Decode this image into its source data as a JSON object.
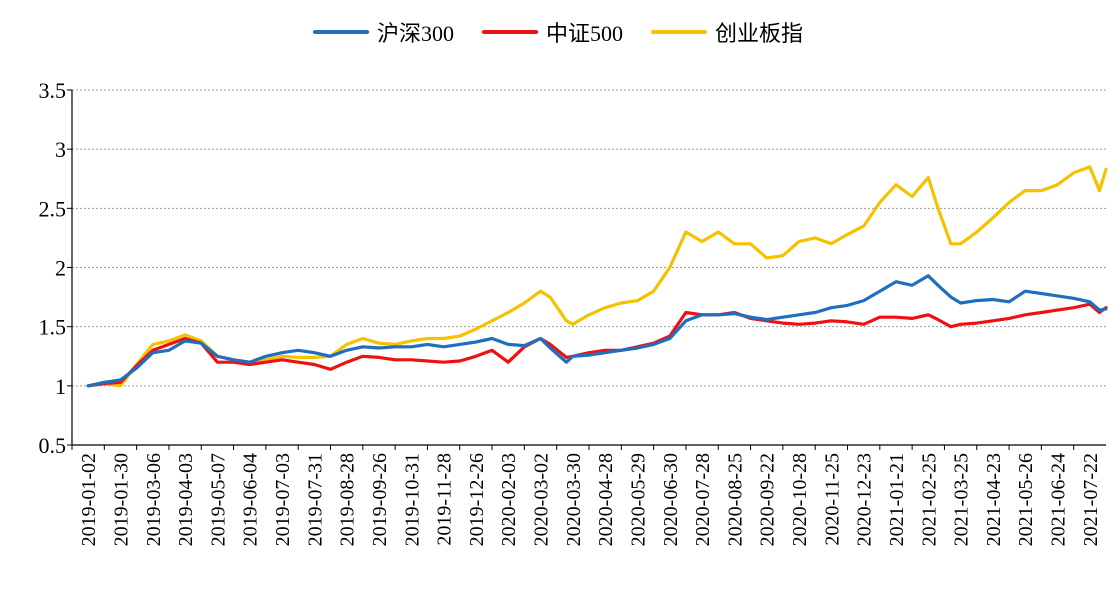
{
  "chart_data": {
    "type": "line",
    "title": "",
    "xlabel": "",
    "ylabel": "",
    "ylim": [
      0.5,
      3.5
    ],
    "yticks": [
      "3.5",
      "3",
      "2.5",
      "2",
      "1.5",
      "1",
      "0.5"
    ],
    "grid": "horizontal dotted",
    "legend_position": "top-center",
    "categories": [
      "2019-01-02",
      "2019-01-30",
      "2019-03-06",
      "2019-04-03",
      "2019-05-07",
      "2019-06-04",
      "2019-07-03",
      "2019-07-31",
      "2019-08-28",
      "2019-09-26",
      "2019-10-31",
      "2019-11-28",
      "2019-12-26",
      "2020-02-03",
      "2020-03-02",
      "2020-03-30",
      "2020-04-28",
      "2020-05-29",
      "2020-06-30",
      "2020-07-28",
      "2020-08-25",
      "2020-09-22",
      "2020-10-28",
      "2020-11-25",
      "2020-12-23",
      "2021-01-21",
      "2021-02-25",
      "2021-03-25",
      "2021-04-23",
      "2021-05-26",
      "2021-06-24",
      "2021-07-22"
    ],
    "series": [
      {
        "name": "沪深300",
        "color": "#1f6fbf",
        "points": [
          [
            0,
            1.0
          ],
          [
            0.5,
            1.03
          ],
          [
            1,
            1.05
          ],
          [
            1.5,
            1.15
          ],
          [
            2,
            1.28
          ],
          [
            2.5,
            1.3
          ],
          [
            3,
            1.38
          ],
          [
            3.5,
            1.36
          ],
          [
            4,
            1.25
          ],
          [
            4.5,
            1.22
          ],
          [
            5,
            1.2
          ],
          [
            5.5,
            1.25
          ],
          [
            6,
            1.28
          ],
          [
            6.5,
            1.3
          ],
          [
            7,
            1.28
          ],
          [
            7.5,
            1.25
          ],
          [
            8,
            1.3
          ],
          [
            8.5,
            1.33
          ],
          [
            9,
            1.32
          ],
          [
            9.5,
            1.33
          ],
          [
            10,
            1.33
          ],
          [
            10.5,
            1.35
          ],
          [
            11,
            1.33
          ],
          [
            11.5,
            1.35
          ],
          [
            12,
            1.37
          ],
          [
            12.5,
            1.4
          ],
          [
            13,
            1.35
          ],
          [
            13.5,
            1.34
          ],
          [
            14,
            1.4
          ],
          [
            14.3,
            1.32
          ],
          [
            14.8,
            1.2
          ],
          [
            15,
            1.25
          ],
          [
            15.5,
            1.26
          ],
          [
            16,
            1.28
          ],
          [
            16.5,
            1.3
          ],
          [
            17,
            1.32
          ],
          [
            17.5,
            1.35
          ],
          [
            18,
            1.4
          ],
          [
            18.5,
            1.55
          ],
          [
            19,
            1.6
          ],
          [
            19.5,
            1.6
          ],
          [
            20,
            1.61
          ],
          [
            20.5,
            1.58
          ],
          [
            21,
            1.56
          ],
          [
            21.5,
            1.58
          ],
          [
            22,
            1.6
          ],
          [
            22.5,
            1.62
          ],
          [
            23,
            1.66
          ],
          [
            23.5,
            1.68
          ],
          [
            24,
            1.72
          ],
          [
            24.5,
            1.8
          ],
          [
            25,
            1.88
          ],
          [
            25.5,
            1.85
          ],
          [
            26,
            1.93
          ],
          [
            26.3,
            1.85
          ],
          [
            26.7,
            1.75
          ],
          [
            27,
            1.7
          ],
          [
            27.5,
            1.72
          ],
          [
            28,
            1.73
          ],
          [
            28.5,
            1.71
          ],
          [
            29,
            1.8
          ],
          [
            29.5,
            1.78
          ],
          [
            30,
            1.76
          ],
          [
            30.5,
            1.74
          ],
          [
            31,
            1.71
          ],
          [
            31.3,
            1.64
          ],
          [
            31.6,
            1.65
          ]
        ]
      },
      {
        "name": "中证500",
        "color": "#ee1111",
        "points": [
          [
            0,
            1.0
          ],
          [
            0.5,
            1.02
          ],
          [
            1,
            1.03
          ],
          [
            1.5,
            1.17
          ],
          [
            2,
            1.3
          ],
          [
            2.5,
            1.35
          ],
          [
            3,
            1.4
          ],
          [
            3.5,
            1.36
          ],
          [
            4,
            1.2
          ],
          [
            4.5,
            1.2
          ],
          [
            5,
            1.18
          ],
          [
            5.5,
            1.2
          ],
          [
            6,
            1.22
          ],
          [
            6.5,
            1.2
          ],
          [
            7,
            1.18
          ],
          [
            7.5,
            1.14
          ],
          [
            8,
            1.2
          ],
          [
            8.5,
            1.25
          ],
          [
            9,
            1.24
          ],
          [
            9.5,
            1.22
          ],
          [
            10,
            1.22
          ],
          [
            10.5,
            1.21
          ],
          [
            11,
            1.2
          ],
          [
            11.5,
            1.21
          ],
          [
            12,
            1.25
          ],
          [
            12.5,
            1.3
          ],
          [
            13,
            1.2
          ],
          [
            13.5,
            1.33
          ],
          [
            14,
            1.4
          ],
          [
            14.3,
            1.35
          ],
          [
            14.8,
            1.24
          ],
          [
            15,
            1.25
          ],
          [
            15.5,
            1.28
          ],
          [
            16,
            1.3
          ],
          [
            16.5,
            1.3
          ],
          [
            17,
            1.33
          ],
          [
            17.5,
            1.36
          ],
          [
            18,
            1.42
          ],
          [
            18.5,
            1.62
          ],
          [
            19,
            1.6
          ],
          [
            19.5,
            1.6
          ],
          [
            20,
            1.62
          ],
          [
            20.5,
            1.57
          ],
          [
            21,
            1.55
          ],
          [
            21.5,
            1.53
          ],
          [
            22,
            1.52
          ],
          [
            22.5,
            1.53
          ],
          [
            23,
            1.55
          ],
          [
            23.5,
            1.54
          ],
          [
            24,
            1.52
          ],
          [
            24.5,
            1.58
          ],
          [
            25,
            1.58
          ],
          [
            25.5,
            1.57
          ],
          [
            26,
            1.6
          ],
          [
            26.3,
            1.56
          ],
          [
            26.7,
            1.5
          ],
          [
            27,
            1.52
          ],
          [
            27.5,
            1.53
          ],
          [
            28,
            1.55
          ],
          [
            28.5,
            1.57
          ],
          [
            29,
            1.6
          ],
          [
            29.5,
            1.62
          ],
          [
            30,
            1.64
          ],
          [
            30.5,
            1.66
          ],
          [
            31,
            1.69
          ],
          [
            31.3,
            1.62
          ],
          [
            31.6,
            1.66
          ]
        ]
      },
      {
        "name": "创业板指",
        "color": "#f5c200",
        "points": [
          [
            0,
            1.0
          ],
          [
            0.5,
            1.02
          ],
          [
            1,
            1.0
          ],
          [
            1.5,
            1.18
          ],
          [
            2,
            1.35
          ],
          [
            2.5,
            1.38
          ],
          [
            3,
            1.43
          ],
          [
            3.5,
            1.38
          ],
          [
            4,
            1.25
          ],
          [
            4.5,
            1.22
          ],
          [
            5,
            1.2
          ],
          [
            5.5,
            1.22
          ],
          [
            6,
            1.25
          ],
          [
            6.5,
            1.24
          ],
          [
            7,
            1.24
          ],
          [
            7.5,
            1.25
          ],
          [
            8,
            1.35
          ],
          [
            8.5,
            1.4
          ],
          [
            9,
            1.36
          ],
          [
            9.5,
            1.35
          ],
          [
            10,
            1.38
          ],
          [
            10.5,
            1.4
          ],
          [
            11,
            1.4
          ],
          [
            11.5,
            1.42
          ],
          [
            12,
            1.48
          ],
          [
            12.5,
            1.55
          ],
          [
            13,
            1.62
          ],
          [
            13.5,
            1.7
          ],
          [
            14,
            1.8
          ],
          [
            14.3,
            1.75
          ],
          [
            14.8,
            1.55
          ],
          [
            15,
            1.52
          ],
          [
            15.5,
            1.6
          ],
          [
            16,
            1.66
          ],
          [
            16.5,
            1.7
          ],
          [
            17,
            1.72
          ],
          [
            17.5,
            1.8
          ],
          [
            18,
            2.0
          ],
          [
            18.5,
            2.3
          ],
          [
            19,
            2.22
          ],
          [
            19.5,
            2.3
          ],
          [
            20,
            2.2
          ],
          [
            20.5,
            2.2
          ],
          [
            21,
            2.08
          ],
          [
            21.5,
            2.1
          ],
          [
            22,
            2.22
          ],
          [
            22.5,
            2.25
          ],
          [
            23,
            2.2
          ],
          [
            23.5,
            2.28
          ],
          [
            24,
            2.35
          ],
          [
            24.5,
            2.55
          ],
          [
            25,
            2.7
          ],
          [
            25.5,
            2.6
          ],
          [
            26,
            2.76
          ],
          [
            26.3,
            2.5
          ],
          [
            26.7,
            2.2
          ],
          [
            27,
            2.2
          ],
          [
            27.5,
            2.3
          ],
          [
            28,
            2.42
          ],
          [
            28.5,
            2.55
          ],
          [
            29,
            2.65
          ],
          [
            29.5,
            2.65
          ],
          [
            30,
            2.7
          ],
          [
            30.5,
            2.8
          ],
          [
            31,
            2.85
          ],
          [
            31.3,
            2.65
          ],
          [
            31.6,
            2.83
          ]
        ]
      }
    ]
  }
}
